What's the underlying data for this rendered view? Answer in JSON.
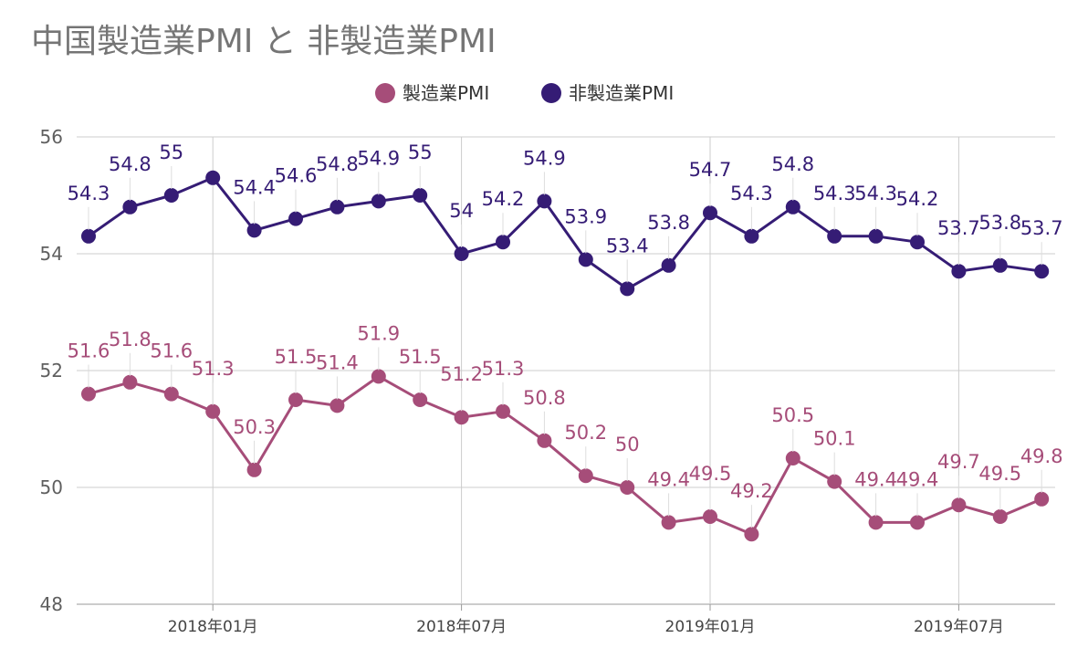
{
  "chart_data": {
    "type": "line",
    "title": "中国製造業PMI と 非製造業PMI",
    "xlabel": "",
    "ylabel": "",
    "ylim": [
      48,
      56
    ],
    "y_ticks": [
      "48",
      "50",
      "52",
      "54",
      "56"
    ],
    "x_ticks": [
      "2018年01月",
      "2018年07月",
      "2019年01月",
      "2019年07月"
    ],
    "x": [
      "2017-10",
      "2017-11",
      "2017-12",
      "2018-01",
      "2018-02",
      "2018-03",
      "2018-04",
      "2018-05",
      "2018-06",
      "2018-07",
      "2018-08",
      "2018-09",
      "2018-10",
      "2018-11",
      "2018-12",
      "2019-01",
      "2019-02",
      "2019-03",
      "2019-04",
      "2019-05",
      "2019-06",
      "2019-07",
      "2019-08",
      "2019-09"
    ],
    "grid": true,
    "legend_position": "top",
    "series": [
      {
        "name": "製造業PMI",
        "color": "#a64d79",
        "values": [
          51.6,
          51.8,
          51.6,
          51.3,
          50.3,
          51.5,
          51.4,
          51.9,
          51.5,
          51.2,
          51.3,
          50.8,
          50.2,
          50,
          49.4,
          49.5,
          49.2,
          50.5,
          50.1,
          49.4,
          49.4,
          49.7,
          49.5,
          49.8
        ]
      },
      {
        "name": "非製造業PMI",
        "color": "#351c75",
        "values": [
          54.3,
          54.8,
          55,
          55.3,
          54.4,
          54.6,
          54.8,
          54.9,
          55,
          54,
          54.2,
          54.9,
          53.9,
          53.4,
          53.8,
          54.7,
          54.3,
          54.8,
          54.3,
          54.3,
          54.2,
          53.7,
          53.8,
          53.7
        ]
      }
    ],
    "data_labels_shown": [
      [
        "51.6",
        "51.8",
        "51.6",
        "51.3",
        "50.3",
        "51.5",
        "51.4",
        "51.9",
        "51.5",
        "51.2",
        "51.3",
        "50.8",
        "50.2",
        "50",
        "49.4",
        "49.5",
        "49.2",
        "50.5",
        "50.1",
        "49.4",
        "49.4",
        "49.7",
        "49.5",
        "49.8"
      ],
      [
        "54.3",
        "54.8",
        "55",
        "",
        "54.4",
        "54.6",
        "54.8",
        "54.9",
        "55",
        "54",
        "54.2",
        "54.9",
        "53.9",
        "53.4",
        "53.8",
        "54.7",
        "54.3",
        "54.8",
        "54.3",
        "54.3",
        "54.2",
        "53.7",
        "53.8",
        "53.7"
      ]
    ]
  }
}
